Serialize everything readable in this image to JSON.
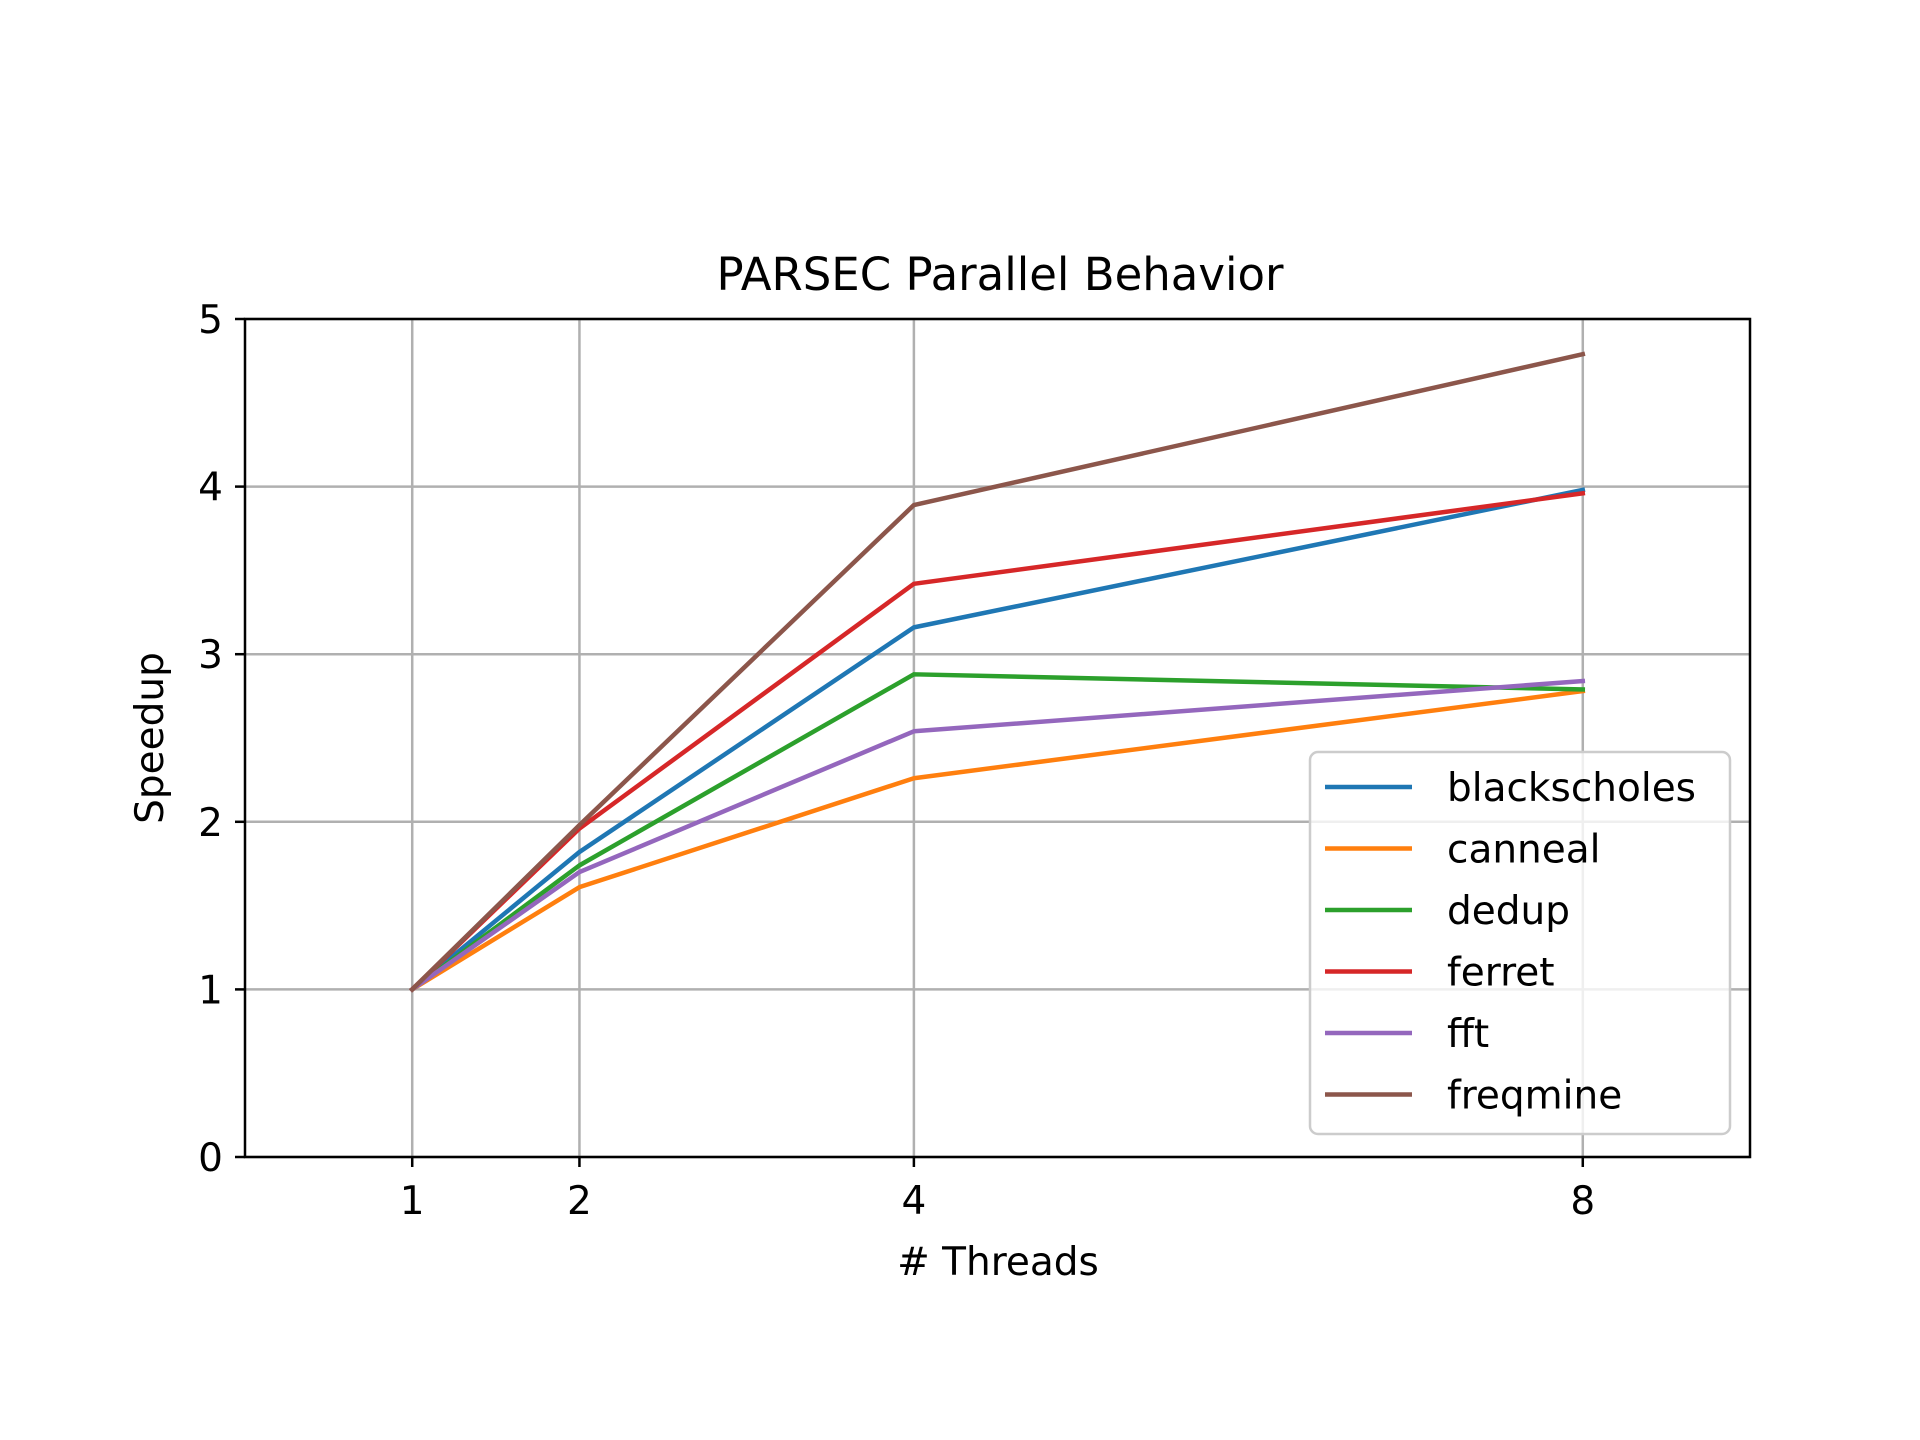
{
  "chart_data": {
    "type": "line",
    "title": "PARSEC Parallel Behavior",
    "xlabel": "# Threads",
    "ylabel": "Speedup",
    "x": [
      1,
      2,
      4,
      8
    ],
    "xlim": [
      0.0,
      9.0
    ],
    "ylim": [
      0,
      5
    ],
    "xticks": [
      1,
      2,
      4,
      8
    ],
    "yticks": [
      0,
      1,
      2,
      3,
      4,
      5
    ],
    "grid": true,
    "legend_position": "lower right",
    "series": [
      {
        "name": "blackscholes",
        "color": "#1f77b4",
        "values": [
          1.0,
          1.82,
          3.16,
          3.98
        ]
      },
      {
        "name": "canneal",
        "color": "#ff7f0e",
        "values": [
          1.0,
          1.61,
          2.26,
          2.78
        ]
      },
      {
        "name": "dedup",
        "color": "#2ca02c",
        "values": [
          1.0,
          1.74,
          2.88,
          2.79
        ]
      },
      {
        "name": "ferret",
        "color": "#d62728",
        "values": [
          1.0,
          1.96,
          3.42,
          3.96
        ]
      },
      {
        "name": "fft",
        "color": "#9467bd",
        "values": [
          1.0,
          1.7,
          2.54,
          2.84
        ]
      },
      {
        "name": "freqmine",
        "color": "#8c564b",
        "values": [
          1.0,
          1.98,
          3.89,
          4.79
        ]
      }
    ]
  }
}
